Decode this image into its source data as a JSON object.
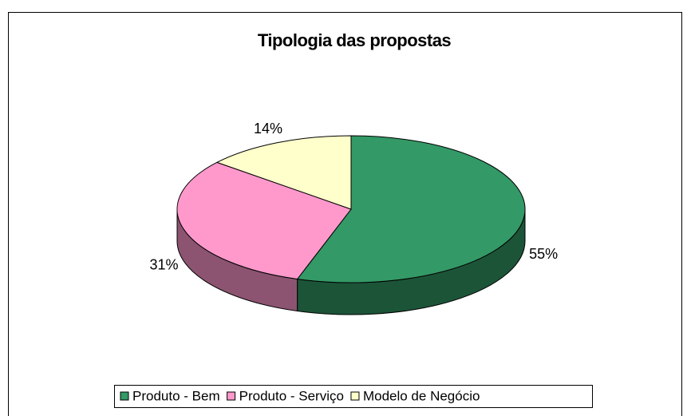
{
  "chart_data": {
    "type": "pie",
    "title": "Tipologia das propostas",
    "categories": [
      "Produto - Bem",
      "Produto - Serviço",
      "Modelo de Negócio"
    ],
    "values": [
      55,
      31,
      14
    ],
    "value_labels": [
      "55%",
      "31%",
      "14%"
    ],
    "colors": [
      "#339966",
      "#ff99cc",
      "#ffffcc"
    ],
    "legend": "bottom"
  }
}
